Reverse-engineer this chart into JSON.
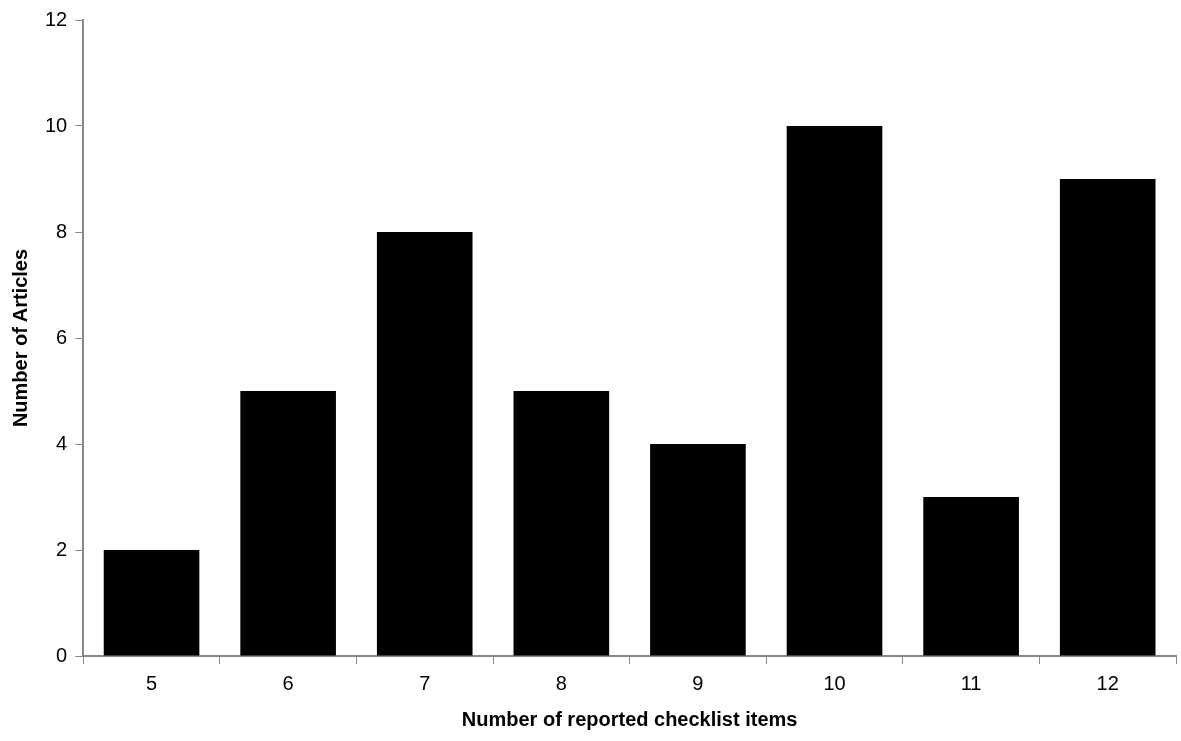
{
  "chart_data": {
    "type": "bar",
    "xlabel": "Number of reported checklist items",
    "ylabel": "Number of Articles",
    "categories": [
      "5",
      "6",
      "7",
      "8",
      "9",
      "10",
      "11",
      "12"
    ],
    "values": [
      2,
      5,
      8,
      5,
      4,
      10,
      3,
      9
    ],
    "color": "#000000",
    "ylim": [
      0,
      12
    ],
    "yticks": [
      0,
      2,
      4,
      6,
      8,
      10,
      12
    ]
  }
}
